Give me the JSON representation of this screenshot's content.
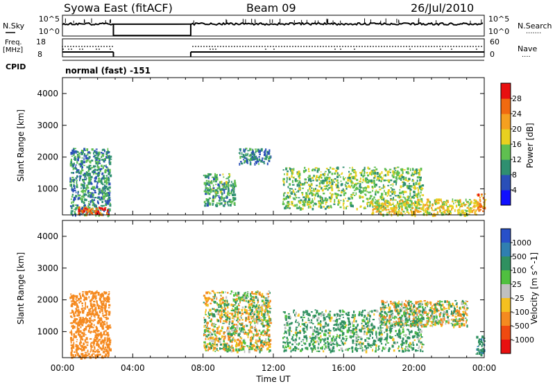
{
  "header": {
    "station": "Syowa East (fitACF)",
    "beam": "Beam 09",
    "date": "26/Jul/2010"
  },
  "side_labels": {
    "nsky": "N.Sky",
    "nsearch": "N.Search",
    "freq_line1": "Freq.",
    "freq_line2": "[MHz]",
    "nave": "Nave",
    "cpid": "CPID",
    "nave_marker": "....",
    "nsearch_marker": "......."
  },
  "noise_panel": {
    "left_ticks": [
      "10^5",
      "10^0"
    ],
    "right_ticks": [
      "10^5",
      "10^0"
    ]
  },
  "freq_panel": {
    "left_ticks": [
      "18",
      "8"
    ],
    "right_ticks": [
      "60",
      "0"
    ]
  },
  "cpid_text": "normal (fast) -151",
  "x_axis": {
    "label": "Time UT",
    "ticks": [
      "00:00",
      "04:00",
      "08:00",
      "12:00",
      "16:00",
      "20:00",
      "00:00"
    ]
  },
  "power_panel": {
    "ylabel": "Slant Range [km]",
    "yticks": [
      "1000",
      "2000",
      "3000",
      "4000"
    ],
    "colorbar_label": "Power [dB]",
    "colorbar_ticks": [
      "4",
      "8",
      "12",
      "16",
      "20",
      "24",
      "28"
    ],
    "colorbar_colors": [
      "#1010ff",
      "#2a4fb8",
      "#2f8f70",
      "#5fbf50",
      "#e8d020",
      "#f5a020",
      "#f06a10",
      "#e81010"
    ]
  },
  "velocity_panel": {
    "ylabel": "Slant Range [km]",
    "yticks": [
      "1000",
      "2000",
      "3000",
      "4000"
    ],
    "colorbar_label": "Velocity [m s^-1]",
    "colorbar_ticks": [
      "1000",
      "500",
      "100",
      "25",
      "-25",
      "-100",
      "-500",
      "-1000"
    ],
    "colorbar_colors": [
      "#2850c8",
      "#2f7fb0",
      "#2f9060",
      "#50c040",
      "#c0c0c0",
      "#f5c020",
      "#f58a20",
      "#f04a10",
      "#e81010"
    ]
  },
  "chart_data": [
    {
      "type": "heatmap",
      "title": "Power",
      "xlabel": "Time UT",
      "ylabel": "Slant Range [km]",
      "xlim": [
        "00:00",
        "24:00"
      ],
      "ylim": [
        180,
        4500
      ],
      "zlabel": "Power [dB]",
      "zlim": [
        0,
        30
      ],
      "data_gap_hours": [
        2.9,
        7.3
      ],
      "echo_regions": [
        {
          "time_start": 0.4,
          "time_end": 2.7,
          "range_start": 200,
          "range_end": 2300,
          "typical_power_db": 10
        },
        {
          "time_start": 0.8,
          "time_end": 2.6,
          "range_start": 200,
          "range_end": 450,
          "typical_power_db": 26
        },
        {
          "time_start": 8.0,
          "time_end": 9.8,
          "range_start": 500,
          "range_end": 1500,
          "typical_power_db": 12
        },
        {
          "time_start": 10.0,
          "time_end": 11.8,
          "range_start": 1800,
          "range_end": 2300,
          "typical_power_db": 9
        },
        {
          "time_start": 12.5,
          "time_end": 20.5,
          "range_start": 400,
          "range_end": 1700,
          "typical_power_db": 14
        },
        {
          "time_start": 17.5,
          "time_end": 23.5,
          "range_start": 200,
          "range_end": 700,
          "typical_power_db": 18
        },
        {
          "time_start": 23.5,
          "time_end": 24.0,
          "range_start": 300,
          "range_end": 900,
          "typical_power_db": 24
        }
      ]
    },
    {
      "type": "heatmap",
      "title": "Velocity",
      "xlabel": "Time UT",
      "ylabel": "Slant Range [km]",
      "xlim": [
        "00:00",
        "24:00"
      ],
      "ylim": [
        180,
        4500
      ],
      "zlabel": "Velocity [m s^-1]",
      "zlim": [
        -1000,
        1000
      ],
      "data_gap_hours": [
        2.9,
        7.3
      ],
      "echo_regions": [
        {
          "time_start": 0.4,
          "time_end": 2.7,
          "range_start": 200,
          "range_end": 2300,
          "typical_velocity": -300
        },
        {
          "time_start": 8.0,
          "time_end": 11.8,
          "range_start": 400,
          "range_end": 2300,
          "typical_velocity": 0
        },
        {
          "time_start": 12.5,
          "time_end": 20.5,
          "range_start": 400,
          "range_end": 1700,
          "typical_velocity": 150
        },
        {
          "time_start": 18.0,
          "time_end": 23.0,
          "range_start": 1200,
          "range_end": 2000,
          "typical_velocity": 0
        },
        {
          "time_start": 23.5,
          "time_end": 24.0,
          "range_start": 300,
          "range_end": 900,
          "typical_velocity": 400
        }
      ]
    }
  ]
}
